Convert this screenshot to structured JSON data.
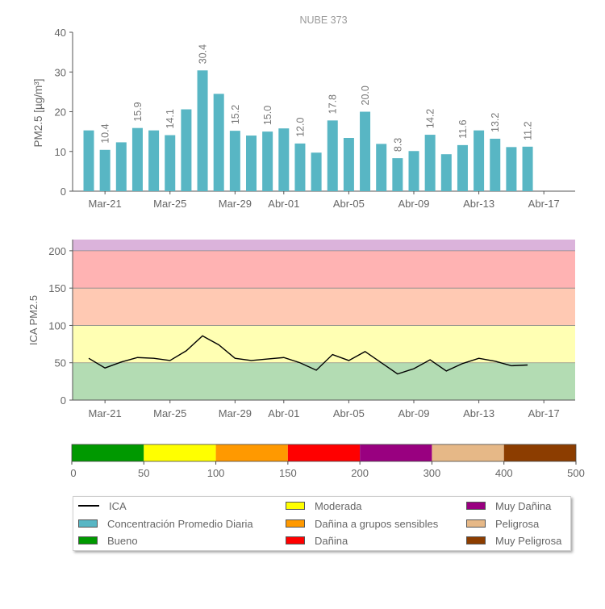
{
  "chart_data": [
    {
      "type": "bar",
      "title": "NUBE 373",
      "ylabel": "PM2.5 [µg/m³]",
      "ylim": [
        0,
        40
      ],
      "yticks": [
        0,
        10,
        20,
        30,
        40
      ],
      "x_ticks": [
        "Mar-21",
        "Mar-25",
        "Mar-29",
        "Abr-01",
        "Abr-05",
        "Abr-09",
        "Abr-13",
        "Abr-17"
      ],
      "color": "#58b6c4",
      "values": [
        15.3,
        10.4,
        12.3,
        15.9,
        15.3,
        14.1,
        20.6,
        30.4,
        24.5,
        15.2,
        14.0,
        15.0,
        15.8,
        12.0,
        9.7,
        17.8,
        13.4,
        20.0,
        11.9,
        8.3,
        10.1,
        14.2,
        9.3,
        11.6,
        15.3,
        13.2,
        11.1,
        11.2
      ],
      "data_labels": [
        "",
        "10.4",
        "",
        "15.9",
        "",
        "14.1",
        "",
        "30.4",
        "",
        "15.2",
        "",
        "15.0",
        "",
        "12.0",
        "",
        "17.8",
        "",
        "20.0",
        "",
        "8.3",
        "",
        "14.2",
        "",
        "11.6",
        "",
        "13.2",
        "",
        "11.2"
      ]
    },
    {
      "type": "line",
      "ylabel": "ICA PM2.5",
      "ylim": [
        0,
        215
      ],
      "yticks": [
        0,
        50,
        100,
        150,
        200
      ],
      "x_ticks": [
        "Mar-21",
        "Mar-25",
        "Mar-29",
        "Abr-01",
        "Abr-05",
        "Abr-09",
        "Abr-13",
        "Abr-17"
      ],
      "series": [
        {
          "name": "ICA",
          "color": "#000000",
          "values": [
            56,
            43,
            51,
            57,
            56,
            53,
            66,
            86,
            74,
            56,
            53,
            55,
            57,
            50,
            40,
            61,
            53,
            65,
            50,
            35,
            42,
            54,
            39,
            49,
            56,
            52,
            46,
            47
          ]
        }
      ],
      "bands": [
        {
          "from": 0,
          "to": 50,
          "color": "#b3dcb3"
        },
        {
          "from": 50,
          "to": 100,
          "color": "#ffffb3"
        },
        {
          "from": 100,
          "to": 150,
          "color": "#ffc9b3"
        },
        {
          "from": 150,
          "to": 200,
          "color": "#ffb3b3"
        },
        {
          "from": 200,
          "to": 215,
          "color": "#dbb3db"
        }
      ]
    },
    {
      "type": "colorbar",
      "ticks": [
        "0",
        "50",
        "100",
        "150",
        "200",
        "300",
        "400",
        "500"
      ],
      "segments": [
        {
          "color": "#009900"
        },
        {
          "color": "#ffff00"
        },
        {
          "color": "#ff9900"
        },
        {
          "color": "#ff0000"
        },
        {
          "color": "#990080"
        },
        {
          "color": "#e6b887"
        },
        {
          "color": "#8c3d00"
        }
      ]
    }
  ],
  "legend": {
    "items": [
      {
        "label": "ICA",
        "kind": "line",
        "color": "#000000"
      },
      {
        "label": "Concentración Promedio Diaria",
        "kind": "box",
        "color": "#58b6c4"
      },
      {
        "label": "Bueno",
        "kind": "box",
        "color": "#009900"
      },
      {
        "label": "Moderada",
        "kind": "box",
        "color": "#ffff00"
      },
      {
        "label": "Dañina a grupos sensibles",
        "kind": "box",
        "color": "#ff9900"
      },
      {
        "label": "Dañina",
        "kind": "box",
        "color": "#ff0000"
      },
      {
        "label": "Muy Dañina",
        "kind": "box",
        "color": "#990080"
      },
      {
        "label": "Peligrosa",
        "kind": "box",
        "color": "#e6b887"
      },
      {
        "label": "Muy Peligrosa",
        "kind": "box",
        "color": "#8c3d00"
      }
    ]
  }
}
